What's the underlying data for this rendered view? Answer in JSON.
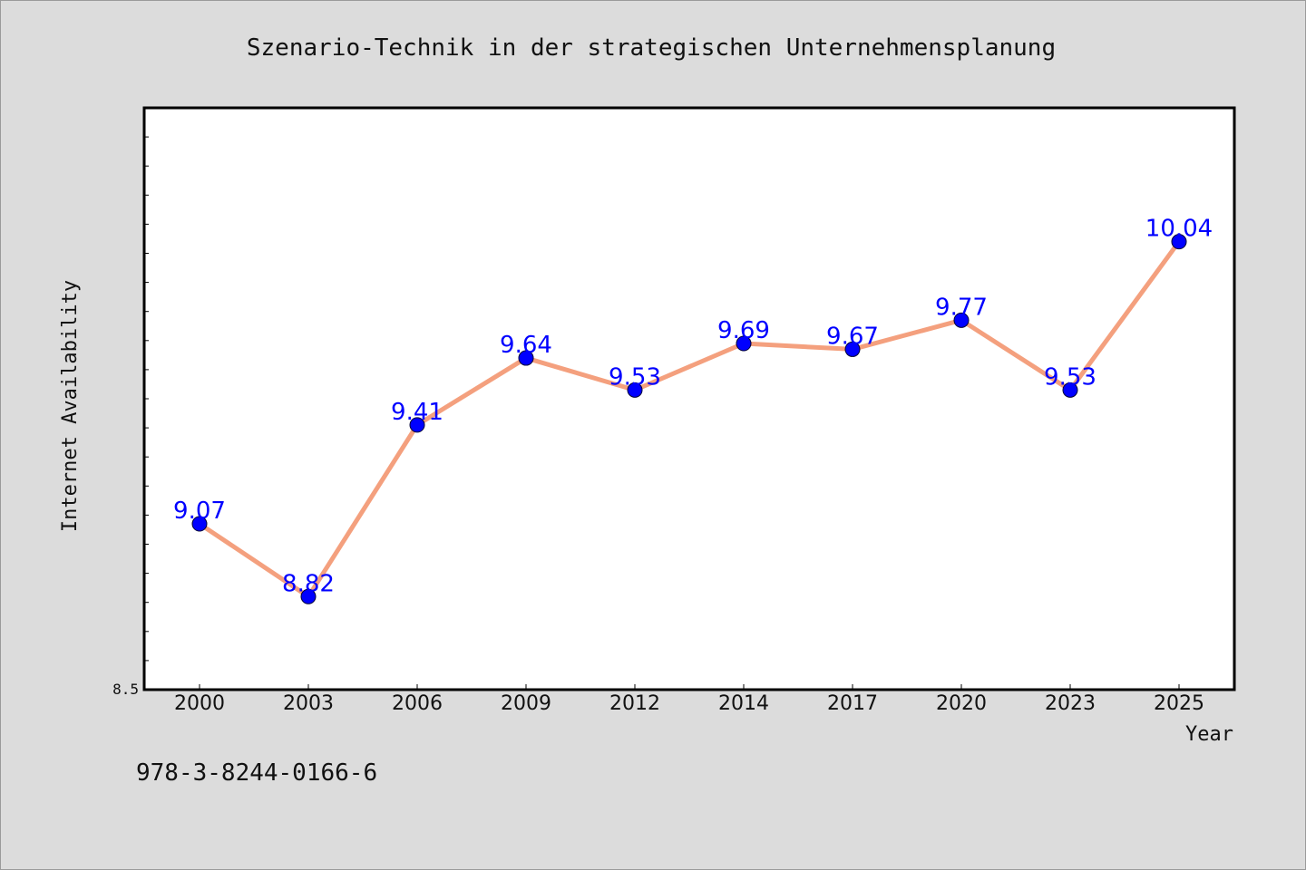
{
  "chart_data": {
    "type": "line",
    "title": "Szenario-Technik in der strategischen Unternehmensplanung",
    "xlabel": "Year",
    "ylabel": "Internet Availability",
    "categories": [
      "2000",
      "2003",
      "2006",
      "2009",
      "2012",
      "2014",
      "2017",
      "2020",
      "2023",
      "2025"
    ],
    "series": [
      {
        "values": [
          9.07,
          8.82,
          9.41,
          9.64,
          9.53,
          9.69,
          9.67,
          9.77,
          9.53,
          10.04
        ]
      }
    ],
    "data_labels": [
      "9.07",
      "8.82",
      "9.41",
      "9.64",
      "9.53",
      "9.69",
      "9.67",
      "9.77",
      "9.53",
      "10.04"
    ],
    "ylim": [
      8.5,
      10.5
    ],
    "y_tick_labels": [
      "8.5"
    ],
    "grid": false,
    "colors": {
      "line": "#f4a07e",
      "marker": "#0000ff",
      "label": "#0000ff",
      "plot_background": "#ffffff",
      "figure_background": "#dcdcdc"
    }
  },
  "footer": {
    "isbn": "978-3-8244-0166-6"
  }
}
